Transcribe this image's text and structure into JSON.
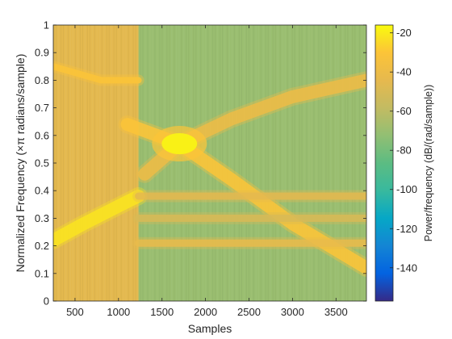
{
  "chart_data": {
    "type": "heatmap",
    "title": "",
    "xlabel": "Samples",
    "ylabel": "Normalized Frequency  (×π radians/sample)",
    "xlim": [
      250,
      3850
    ],
    "ylim": [
      0,
      1
    ],
    "x_ticks": [
      500,
      1000,
      1500,
      2000,
      2500,
      3000,
      3500
    ],
    "y_ticks": [
      0,
      0.1,
      0.2,
      0.3,
      0.4,
      0.5,
      0.6,
      0.7,
      0.8,
      0.9,
      1
    ],
    "x_tick_labels": [
      "500",
      "1000",
      "1500",
      "2000",
      "2500",
      "3000",
      "3500"
    ],
    "y_tick_labels": [
      "0",
      "0.1",
      "0.2",
      "0.3",
      "0.4",
      "0.5",
      "0.6",
      "0.7",
      "0.8",
      "0.9",
      "1"
    ],
    "colormap": "parula",
    "colorbar": {
      "label": "Power/frequency (dB/(rad/sample))",
      "range": [
        -157,
        -16
      ],
      "ticks": [
        -20,
        -40,
        -60,
        -80,
        -100,
        -120,
        -140
      ],
      "tick_labels": [
        "-20",
        "-40",
        "-60",
        "-80",
        "-100",
        "-120",
        "-140"
      ]
    },
    "background_level_db": -70,
    "regions": [
      {
        "name": "",
        "x_range": [
          250,
          1230
        ],
        "level_db": -45
      }
    ],
    "features": [
      {
        "kind": "tone",
        "x": [
          250,
          800,
          1230
        ],
        "y": [
          0.85,
          0.8,
          0.8
        ],
        "level_db": -30
      },
      {
        "kind": "chirp",
        "x": [
          250,
          600,
          1100,
          1230
        ],
        "y": [
          0.22,
          0.28,
          0.36,
          0.38
        ],
        "level_db": -22
      },
      {
        "kind": "chirp",
        "x": [
          1100,
          1700,
          2300,
          3000,
          3850
        ],
        "y": [
          0.64,
          0.57,
          0.44,
          0.28,
          0.12
        ],
        "level_db": -30
      },
      {
        "kind": "chirp",
        "x": [
          1300,
          1700,
          2300,
          3000,
          3850
        ],
        "y": [
          0.46,
          0.57,
          0.66,
          0.74,
          0.8
        ],
        "level_db": -40
      },
      {
        "kind": "blob",
        "x": [
          1700
        ],
        "y": [
          0.57
        ],
        "level_db": -18
      },
      {
        "kind": "band",
        "x": [
          1230,
          3850
        ],
        "y": [
          0.21,
          0.21
        ],
        "level_db": -42
      },
      {
        "kind": "band",
        "x": [
          1230,
          3850
        ],
        "y": [
          0.38,
          0.38
        ],
        "level_db": -45
      },
      {
        "kind": "band",
        "x": [
          1230,
          3850
        ],
        "y": [
          0.3,
          0.3
        ],
        "level_db": -50
      }
    ]
  }
}
